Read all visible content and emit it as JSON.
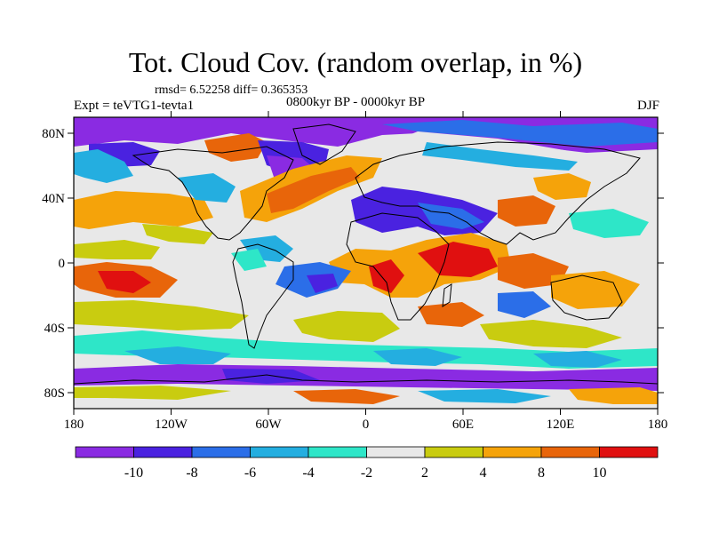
{
  "title": "Tot. Cloud Cov. (random overlap, in %)",
  "stats_line": "rmsd= 6.52258 diff= 0.365353",
  "experiment": "Expt = teVTG1-tevta1",
  "period": "0800kyr BP - 0000kyr BP",
  "season": "DJF",
  "map": {
    "lat_ticks": [
      "80N",
      "40N",
      "0",
      "40S",
      "80S"
    ],
    "lon_ticks": [
      "180",
      "120W",
      "60W",
      "0",
      "60E",
      "120E",
      "180"
    ]
  },
  "colorbar": {
    "labels": [
      "-10",
      "-8",
      "-6",
      "-4",
      "-2",
      "2",
      "4",
      "8",
      "10"
    ],
    "colors": [
      "#8a2be2",
      "#4a22e0",
      "#2b6ee8",
      "#24aee0",
      "#2ee6c8",
      "#e8e8e8",
      "#c9cc10",
      "#f5a30a",
      "#e8650a",
      "#e01010"
    ]
  }
}
